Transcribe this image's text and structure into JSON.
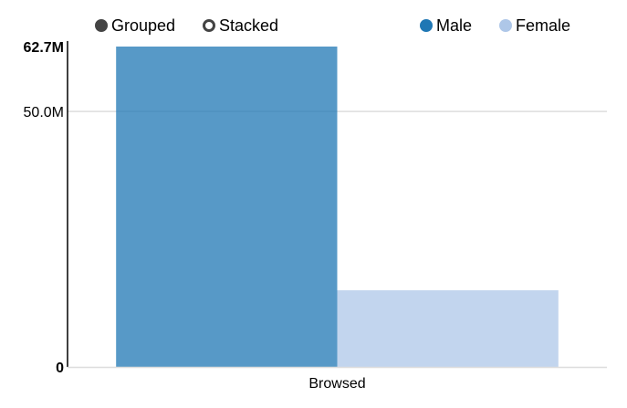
{
  "controls": {
    "grouped_label": "Grouped",
    "stacked_label": "Stacked",
    "selected": "grouped"
  },
  "legend": {
    "items": [
      {
        "label": "Male",
        "color": "#1f77b4"
      },
      {
        "label": "Female",
        "color": "#aec7e8"
      }
    ]
  },
  "chart_data": {
    "type": "bar",
    "mode": "grouped",
    "categories": [
      "Browsed"
    ],
    "series": [
      {
        "name": "Male",
        "values": [
          62.7
        ],
        "color": "#1f77b4"
      },
      {
        "name": "Female",
        "values": [
          15.0
        ],
        "color": "#aec7e8"
      }
    ],
    "unit": "M",
    "ylim": [
      0,
      62.7
    ],
    "yticks": [
      {
        "value": 0,
        "label": "0",
        "bold": true
      },
      {
        "value": 50.0,
        "label": "50.0M",
        "bold": false
      },
      {
        "value": 62.7,
        "label": "62.7M",
        "bold": true
      }
    ],
    "grid": true,
    "legend_position": "top-right"
  }
}
